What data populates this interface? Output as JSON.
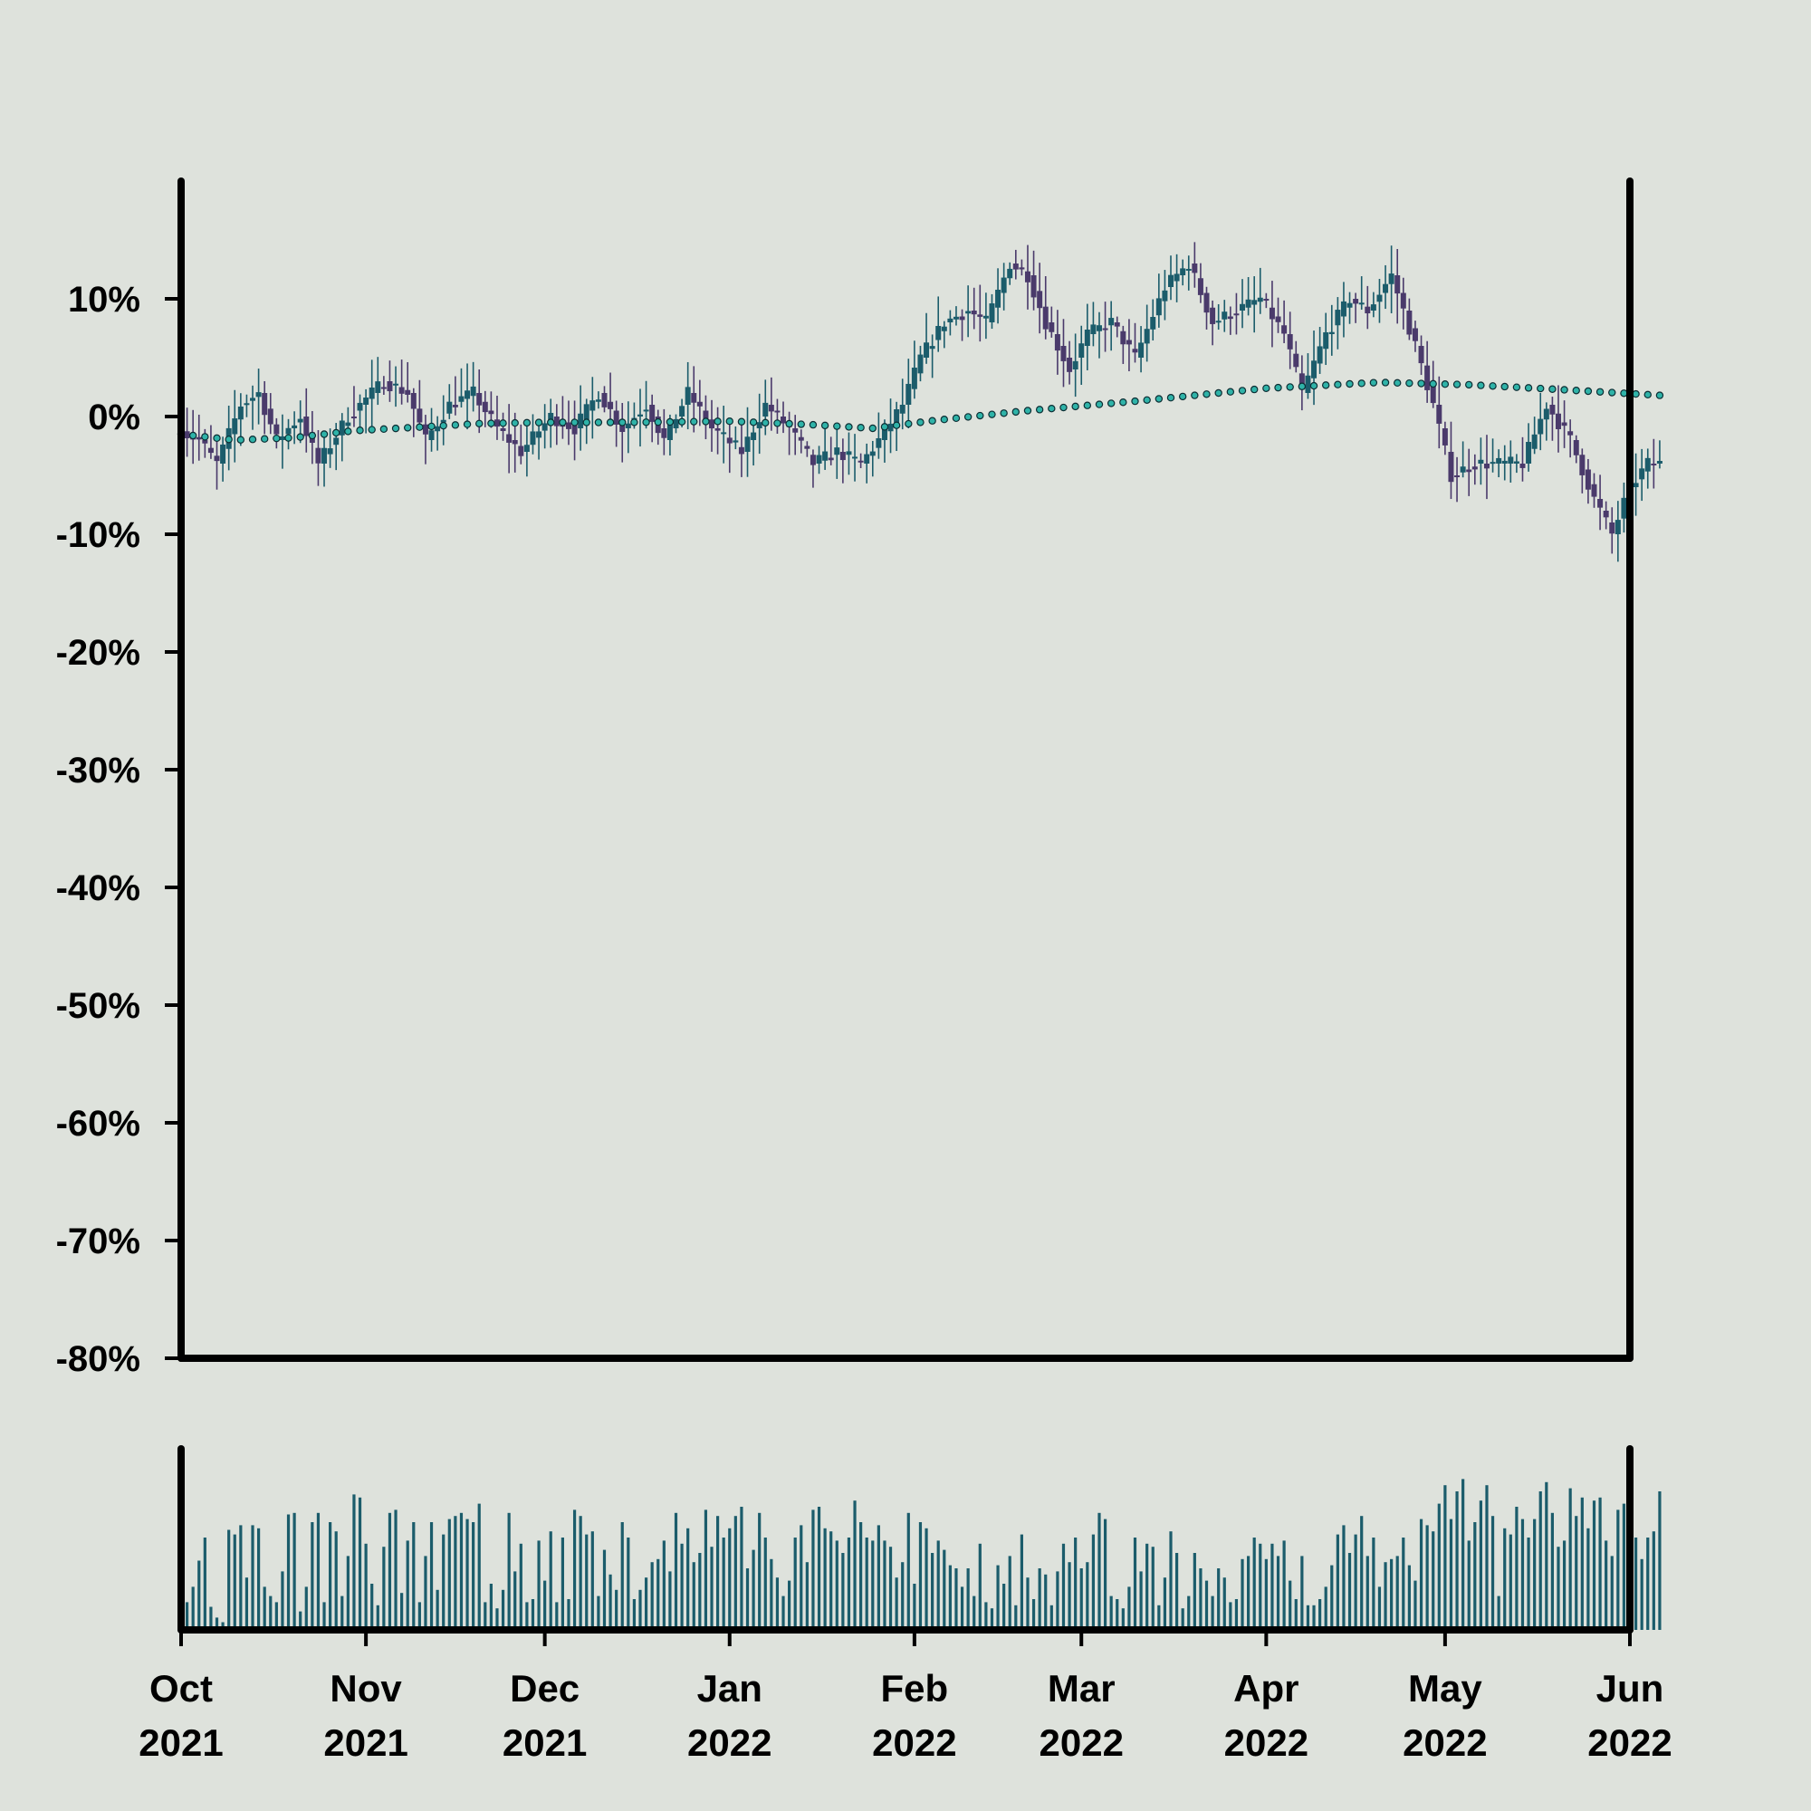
{
  "chart_data": {
    "type": "candlestick",
    "title": "",
    "xlabel": "",
    "ylabel": "",
    "x_range": [
      "2021-10-01",
      "2022-06-01"
    ],
    "ylim": [
      -80,
      20
    ],
    "y_tick_values": [
      10,
      0,
      -10,
      -20,
      -30,
      -40,
      -50,
      -60,
      -70,
      -80
    ],
    "y_tick_labels": [
      "10%",
      "0%",
      "-10%",
      "-20%",
      "-30%",
      "-40%",
      "-50%",
      "-60%",
      "-70%",
      "-80%"
    ],
    "x_ticks": [
      {
        "date": "2021-10-01",
        "month": "Oct",
        "year": "2021"
      },
      {
        "date": "2021-11-01",
        "month": "Nov",
        "year": "2021"
      },
      {
        "date": "2021-12-01",
        "month": "Dec",
        "year": "2021"
      },
      {
        "date": "2022-01-01",
        "month": "Jan",
        "year": "2022"
      },
      {
        "date": "2022-02-01",
        "month": "Feb",
        "year": "2022"
      },
      {
        "date": "2022-03-01",
        "month": "Mar",
        "year": "2022"
      },
      {
        "date": "2022-04-01",
        "month": "Apr",
        "year": "2022"
      },
      {
        "date": "2022-05-01",
        "month": "May",
        "year": "2022"
      },
      {
        "date": "2022-06-01",
        "month": "Jun",
        "year": "2022"
      }
    ],
    "price_anchors": [
      {
        "date": "2021-10-01",
        "value": -1
      },
      {
        "date": "2021-10-05",
        "value": -2
      },
      {
        "date": "2021-10-08",
        "value": -4
      },
      {
        "date": "2021-10-12",
        "value": 1
      },
      {
        "date": "2021-10-15",
        "value": 2
      },
      {
        "date": "2021-10-18",
        "value": -2
      },
      {
        "date": "2021-10-22",
        "value": 0
      },
      {
        "date": "2021-10-25",
        "value": -4
      },
      {
        "date": "2021-10-30",
        "value": 0
      },
      {
        "date": "2021-11-05",
        "value": 3
      },
      {
        "date": "2021-11-09",
        "value": 2
      },
      {
        "date": "2021-11-12",
        "value": -2
      },
      {
        "date": "2021-11-16",
        "value": 1
      },
      {
        "date": "2021-11-20",
        "value": 2
      },
      {
        "date": "2021-11-24",
        "value": -1
      },
      {
        "date": "2021-11-28",
        "value": -3
      },
      {
        "date": "2021-12-03",
        "value": 0
      },
      {
        "date": "2021-12-07",
        "value": -1
      },
      {
        "date": "2021-12-11",
        "value": 2
      },
      {
        "date": "2021-12-15",
        "value": -1
      },
      {
        "date": "2021-12-19",
        "value": 1
      },
      {
        "date": "2021-12-22",
        "value": -2
      },
      {
        "date": "2021-12-26",
        "value": 2
      },
      {
        "date": "2021-12-30",
        "value": -1
      },
      {
        "date": "2022-01-04",
        "value": -3
      },
      {
        "date": "2022-01-08",
        "value": 1
      },
      {
        "date": "2022-01-12",
        "value": -1
      },
      {
        "date": "2022-01-16",
        "value": -4
      },
      {
        "date": "2022-01-20",
        "value": -3
      },
      {
        "date": "2022-01-24",
        "value": -4
      },
      {
        "date": "2022-01-27",
        "value": -2
      },
      {
        "date": "2022-01-31",
        "value": 1
      },
      {
        "date": "2022-02-03",
        "value": 5
      },
      {
        "date": "2022-02-07",
        "value": 8
      },
      {
        "date": "2022-02-11",
        "value": 9
      },
      {
        "date": "2022-02-14",
        "value": 8
      },
      {
        "date": "2022-02-18",
        "value": 13
      },
      {
        "date": "2022-02-21",
        "value": 12
      },
      {
        "date": "2022-02-24",
        "value": 8
      },
      {
        "date": "2022-02-28",
        "value": 4
      },
      {
        "date": "2022-03-03",
        "value": 7
      },
      {
        "date": "2022-03-07",
        "value": 8
      },
      {
        "date": "2022-03-11",
        "value": 5
      },
      {
        "date": "2022-03-16",
        "value": 11
      },
      {
        "date": "2022-03-20",
        "value": 13
      },
      {
        "date": "2022-03-24",
        "value": 8
      },
      {
        "date": "2022-03-28",
        "value": 9
      },
      {
        "date": "2022-04-01",
        "value": 10
      },
      {
        "date": "2022-04-05",
        "value": 7
      },
      {
        "date": "2022-04-08",
        "value": 2
      },
      {
        "date": "2022-04-12",
        "value": 7
      },
      {
        "date": "2022-04-16",
        "value": 10
      },
      {
        "date": "2022-04-19",
        "value": 9
      },
      {
        "date": "2022-04-23",
        "value": 12
      },
      {
        "date": "2022-04-27",
        "value": 6
      },
      {
        "date": "2022-04-30",
        "value": 1
      },
      {
        "date": "2022-05-03",
        "value": -5
      },
      {
        "date": "2022-05-07",
        "value": -4
      },
      {
        "date": "2022-05-10",
        "value": -4
      },
      {
        "date": "2022-05-15",
        "value": -4
      },
      {
        "date": "2022-05-19",
        "value": 1
      },
      {
        "date": "2022-05-23",
        "value": -2
      },
      {
        "date": "2022-05-27",
        "value": -7
      },
      {
        "date": "2022-05-30",
        "value": -10
      },
      {
        "date": "2022-06-02",
        "value": -6
      },
      {
        "date": "2022-06-05",
        "value": -4
      },
      {
        "date": "2022-06-06",
        "value": -4
      }
    ],
    "moving_average_anchors": [
      {
        "date": "2021-10-01",
        "value": -1.5
      },
      {
        "date": "2021-10-10",
        "value": -2.0
      },
      {
        "date": "2021-10-20",
        "value": -1.8
      },
      {
        "date": "2021-10-30",
        "value": -1.2
      },
      {
        "date": "2021-11-10",
        "value": -0.9
      },
      {
        "date": "2021-11-20",
        "value": -0.6
      },
      {
        "date": "2021-12-01",
        "value": -0.5
      },
      {
        "date": "2021-12-15",
        "value": -0.5
      },
      {
        "date": "2022-01-01",
        "value": -0.4
      },
      {
        "date": "2022-01-15",
        "value": -0.7
      },
      {
        "date": "2022-01-25",
        "value": -1.0
      },
      {
        "date": "2022-02-05",
        "value": -0.3
      },
      {
        "date": "2022-02-20",
        "value": 0.5
      },
      {
        "date": "2022-03-10",
        "value": 1.3
      },
      {
        "date": "2022-04-01",
        "value": 2.4
      },
      {
        "date": "2022-04-20",
        "value": 2.9
      },
      {
        "date": "2022-05-05",
        "value": 2.7
      },
      {
        "date": "2022-05-20",
        "value": 2.3
      },
      {
        "date": "2022-06-06",
        "value": 1.8
      }
    ],
    "volume_profile": [
      100,
      18,
      28,
      45,
      60,
      15,
      8,
      5,
      65,
      62,
      68,
      34,
      68,
      66,
      28,
      22,
      18,
      38,
      75,
      76,
      12,
      28,
      70,
      76,
      18,
      70,
      64,
      22,
      48,
      88,
      86,
      56,
      30,
      16,
      54,
      76,
      78,
      24,
      58,
      70,
      18,
      48,
      70,
      26,
      62,
      72,
      74,
      76,
      72,
      70,
      82,
      18,
      30,
      14,
      26,
      76,
      38,
      56,
      18,
      20,
      58,
      32,
      64,
      18,
      60,
      20,
      78,
      74,
      62,
      64,
      22,
      52,
      36,
      26,
      70,
      60,
      20,
      26,
      34,
      44,
      46,
      58,
      38,
      76,
      56,
      66,
      44,
      50,
      78,
      54,
      74,
      60,
      66,
      74,
      80,
      40,
      52,
      76,
      60,
      46,
      34,
      22,
      32,
      60,
      68,
      44,
      78,
      80,
      66,
      64,
      58,
      50,
      60,
      84,
      70,
      60,
      58,
      68,
      58,
      54,
      34,
      44,
      76,
      30,
      70,
      66,
      50,
      58,
      52,
      42,
      40,
      28,
      40,
      22,
      56,
      18,
      14,
      42,
      30,
      48,
      16,
      62,
      34,
      20,
      40,
      36,
      16,
      38,
      56,
      44,
      60,
      40,
      44,
      62,
      76,
      72,
      22,
      20,
      14,
      28,
      60,
      38,
      56,
      54,
      16,
      34,
      64,
      50,
      14,
      22,
      50,
      40,
      32,
      22,
      40,
      34,
      18,
      20,
      46,
      48,
      60,
      56,
      46,
      56,
      48,
      58,
      32,
      20,
      48,
      16,
      16,
      20,
      28,
      42,
      62,
      68,
      50,
      62,
      74,
      48,
      60,
      28,
      44,
      46,
      48,
      60,
      42,
      32,
      72,
      68,
      64,
      82,
      94,
      72,
      90,
      98,
      58,
      70,
      84,
      94,
      74,
      22,
      66,
      62,
      80,
      72,
      60,
      72,
      90,
      96,
      76,
      54,
      58,
      92,
      74,
      86,
      66,
      84,
      86,
      58,
      48,
      78,
      82,
      62,
      60,
      46,
      60,
      64,
      90,
      80,
      62
    ],
    "up_color": "#1b5c6b",
    "down_color": "#4a3a6b",
    "moving_average_color": "#2fb3a8",
    "volume_color": "#1b5c6b",
    "background_color": "#dee2dc",
    "grid": false,
    "legend": "none",
    "volume_axis_labels": false
  }
}
